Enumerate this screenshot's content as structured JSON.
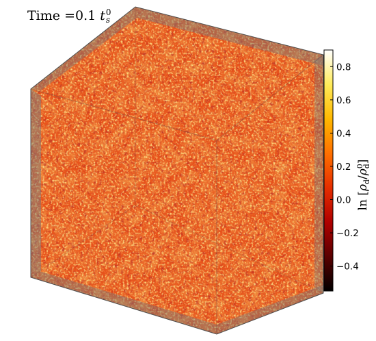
{
  "figure": {
    "time_label": {
      "prefix": "Time",
      "equals": "=",
      "value": "0.1",
      "symbol": "t",
      "subscript": "s",
      "superscript": "0"
    },
    "colorbar": {
      "label": {
        "fn": "ln",
        "symbol": "ρ",
        "subscript": "d",
        "superscript": "0"
      },
      "ticks": [
        {
          "value": 0.8,
          "label": "0.8"
        },
        {
          "value": 0.6,
          "label": "0.6"
        },
        {
          "value": 0.4,
          "label": "0.4"
        },
        {
          "value": 0.2,
          "label": "0.2"
        },
        {
          "value": 0.0,
          "label": "0.0"
        },
        {
          "value": -0.2,
          "label": "−0.2"
        },
        {
          "value": -0.4,
          "label": "−0.4"
        }
      ],
      "range": [
        -0.55,
        0.9
      ],
      "colormap": "afmhot",
      "colors": [
        "#000000",
        "#5a0000",
        "#b00000",
        "#e62e00",
        "#ff7000",
        "#ffb800",
        "#ffeb5a",
        "#ffffff"
      ]
    },
    "cube": {
      "frame_color": "#7a7a7a",
      "edge_color": "#555555",
      "texture": "turbulent density field"
    }
  }
}
